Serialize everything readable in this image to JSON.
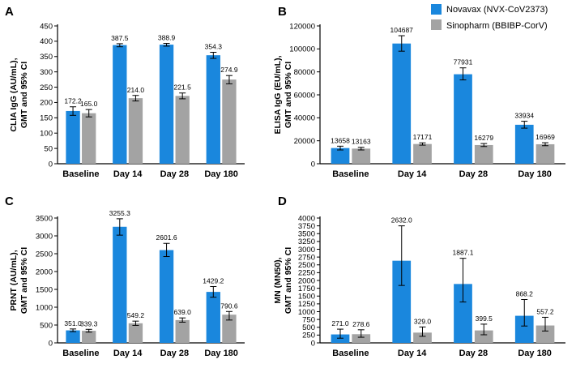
{
  "colors": {
    "series1": "#1a87dd",
    "series2": "#a3a3a3"
  },
  "legend": [
    {
      "name": "Novavax (NVX-CoV2373)",
      "color": "#1a87dd"
    },
    {
      "name": "Sinopharm (BBIBP-CorV)",
      "color": "#a3a3a3"
    }
  ],
  "chart_data": [
    {
      "panel": "A",
      "type": "bar",
      "categories": [
        "Baseline",
        "Day 14",
        "Day 28",
        "Day 180"
      ],
      "ylabel": [
        "CLIA IgG (AU/mL),",
        "GMT and 95% CI"
      ],
      "ylim": [
        0,
        450
      ],
      "yticks": [
        "0",
        "50",
        "100",
        "150",
        "200",
        "250",
        "300",
        "350",
        "400",
        "450"
      ],
      "series": [
        {
          "name": "Novavax (NVX-CoV2373)",
          "values": [
            172.2,
            387.5,
            388.9,
            354.3
          ],
          "labels": [
            "172.2",
            "387.5",
            "388.9",
            "354.3"
          ],
          "ci": [
            [
              158,
              186
            ],
            [
              382,
              392
            ],
            [
              384,
              393
            ],
            [
              344,
              364
            ]
          ]
        },
        {
          "name": "Sinopharm (BBIBP-CorV)",
          "values": [
            165.0,
            214.0,
            221.5,
            274.9
          ],
          "labels": [
            "165.0",
            "214.0",
            "221.5",
            "274.9"
          ],
          "ci": [
            [
              153,
              177
            ],
            [
              205,
              223
            ],
            [
              212,
              231
            ],
            [
              261,
              288
            ]
          ]
        }
      ]
    },
    {
      "panel": "B",
      "type": "bar",
      "categories": [
        "Baseline",
        "Day 14",
        "Day 28",
        "Day 180"
      ],
      "ylabel": [
        "ELISA IgG (EU/mL),",
        "GMT and 95% CI"
      ],
      "ylim": [
        0,
        120000
      ],
      "yticks": [
        "0",
        "20000",
        "40000",
        "60000",
        "80000",
        "100000",
        "120000"
      ],
      "series": [
        {
          "name": "Novavax (NVX-CoV2373)",
          "values": [
            13658,
            104687,
            77931,
            33934
          ],
          "labels": [
            "13658",
            "104687",
            "77931",
            "33934"
          ],
          "ci": [
            [
              12000,
              15300
            ],
            [
              98000,
              111500
            ],
            [
              73000,
              83500
            ],
            [
              31000,
              37000
            ]
          ]
        },
        {
          "name": "Sinopharm (BBIBP-CorV)",
          "values": [
            13163,
            17171,
            16279,
            16969
          ],
          "labels": [
            "13163",
            "17171",
            "16279",
            "16969"
          ],
          "ci": [
            [
              12000,
              14300
            ],
            [
              16200,
              18200
            ],
            [
              15000,
              17600
            ],
            [
              15700,
              18300
            ]
          ]
        }
      ]
    },
    {
      "panel": "C",
      "type": "bar",
      "categories": [
        "Baseline",
        "Day 14",
        "Day 28",
        "Day 180"
      ],
      "ylabel": [
        "PRNT (AU/mL),",
        "GMT and 95% CI"
      ],
      "ylim": [
        0,
        3500
      ],
      "yticks": [
        "0",
        "500",
        "1000",
        "1500",
        "2000",
        "2500",
        "3000",
        "3500"
      ],
      "series": [
        {
          "name": "Novavax (NVX-CoV2373)",
          "values": [
            351.0,
            3255.3,
            2601.6,
            1429.2
          ],
          "labels": [
            "351.0",
            "3255.3",
            "2601.6",
            "1429.2"
          ],
          "ci": [
            [
              315,
              390
            ],
            [
              3020,
              3480
            ],
            [
              2420,
              2790
            ],
            [
              1280,
              1580
            ]
          ]
        },
        {
          "name": "Sinopharm (BBIBP-CorV)",
          "values": [
            339.3,
            549.2,
            639.0,
            790.6
          ],
          "labels": [
            "339.3",
            "549.2",
            "639.0",
            "790.6"
          ],
          "ci": [
            [
              300,
              380
            ],
            [
              490,
              610
            ],
            [
              580,
              700
            ],
            [
              640,
              880
            ]
          ]
        }
      ]
    },
    {
      "panel": "D",
      "type": "bar",
      "categories": [
        "Baseline",
        "Day 14",
        "Day 28",
        "Day 180"
      ],
      "ylabel": [
        "MN (MN50),",
        "GMT and 95% CI"
      ],
      "ylim": [
        0,
        4000
      ],
      "yticks": [
        "0",
        "250",
        "500",
        "750",
        "1000",
        "1250",
        "1500",
        "1750",
        "2000",
        "2250",
        "2500",
        "2750",
        "3000",
        "3250",
        "3500",
        "3750",
        "4000"
      ],
      "series": [
        {
          "name": "Novavax (NVX-CoV2373)",
          "values": [
            271.0,
            2632.0,
            1887.1,
            868.2
          ],
          "labels": [
            "271.0",
            "2632.0",
            "1887.1",
            "868.2"
          ],
          "ci": [
            [
              150,
              440
            ],
            [
              1840,
              3750
            ],
            [
              1310,
              2710
            ],
            [
              540,
              1390
            ]
          ]
        },
        {
          "name": "Sinopharm (BBIBP-CorV)",
          "values": [
            278.6,
            329.0,
            399.5,
            557.2
          ],
          "labels": [
            "278.6",
            "329.0",
            "399.5",
            "557.2"
          ],
          "ci": [
            [
              180,
              420
            ],
            [
              210,
              510
            ],
            [
              260,
              600
            ],
            [
              380,
              820
            ]
          ]
        }
      ]
    }
  ]
}
